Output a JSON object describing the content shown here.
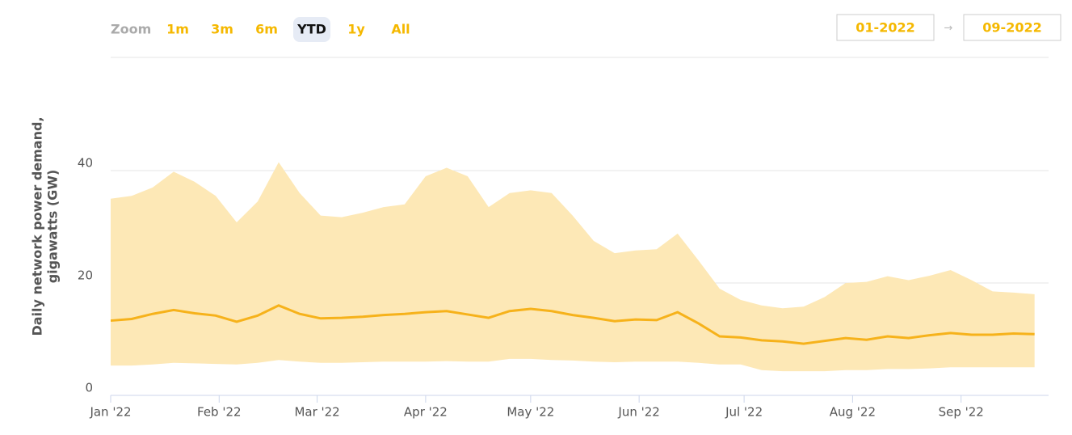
{
  "controls": {
    "zoom_label": "Zoom",
    "zoom_buttons": [
      "1m",
      "3m",
      "6m",
      "YTD",
      "1y",
      "All"
    ],
    "selected_index": 3,
    "range_from": "01-2022",
    "range_separator": "→",
    "range_to": "09-2022"
  },
  "chart_data": {
    "type": "line",
    "ylabel": [
      "Daily network power demand,",
      "gigawatts (GW)"
    ],
    "x": [
      0,
      6,
      12,
      18,
      24,
      30,
      36,
      42,
      48,
      54,
      60,
      66,
      72,
      78,
      84,
      90,
      96,
      102,
      108,
      114,
      120,
      126,
      132,
      138,
      144,
      150,
      156,
      162,
      168,
      174,
      180,
      186,
      192,
      198,
      204,
      210,
      216,
      222,
      228,
      234,
      240,
      246,
      252,
      258,
      264
    ],
    "xlim": [
      0,
      268
    ],
    "xticks": [
      {
        "value": 0,
        "label": "Jan '22"
      },
      {
        "value": 31,
        "label": "Feb '22"
      },
      {
        "value": 59,
        "label": "Mar '22"
      },
      {
        "value": 90,
        "label": "Apr '22"
      },
      {
        "value": 120,
        "label": "May '22"
      },
      {
        "value": 151,
        "label": "Jun '22"
      },
      {
        "value": 181,
        "label": "Jul '22"
      },
      {
        "value": 212,
        "label": "Aug '22"
      },
      {
        "value": 243,
        "label": "Sep '22"
      }
    ],
    "ylim": [
      0,
      60
    ],
    "yticks": [
      0,
      20,
      40
    ],
    "grid": true,
    "series": [
      {
        "type": "arearange",
        "color": "#fde8b6",
        "high": [
          35,
          35.5,
          37,
          39.8,
          38,
          35.5,
          30.8,
          34.5,
          41.5,
          36,
          32,
          31.7,
          32.5,
          33.5,
          34,
          39,
          40.5,
          39,
          33.5,
          36,
          36.5,
          36,
          32,
          27.5,
          25.3,
          25.8,
          26,
          28.8,
          24,
          19,
          17,
          16,
          15.5,
          15.8,
          17.5,
          20,
          20.2,
          21.2,
          20.5,
          21.3,
          22.3,
          20.5,
          18.5,
          18.3,
          18
        ],
        "low": [
          5.3,
          5.3,
          5.5,
          5.8,
          5.7,
          5.6,
          5.5,
          5.8,
          6.3,
          6,
          5.8,
          5.8,
          5.9,
          6,
          6,
          6,
          6.1,
          6,
          6,
          6.5,
          6.5,
          6.3,
          6.2,
          6,
          5.9,
          6,
          6,
          6,
          5.8,
          5.5,
          5.5,
          4.5,
          4.3,
          4.3,
          4.3,
          4.5,
          4.5,
          4.7,
          4.7,
          4.8,
          5,
          5,
          5,
          5,
          5
        ]
      },
      {
        "type": "line",
        "color": "#f6b21b",
        "values": [
          13.3,
          13.6,
          14.5,
          15.2,
          14.6,
          14.2,
          13.1,
          14.2,
          16,
          14.5,
          13.7,
          13.8,
          14,
          14.3,
          14.5,
          14.8,
          15,
          14.4,
          13.8,
          15,
          15.4,
          15,
          14.3,
          13.8,
          13.2,
          13.5,
          13.4,
          14.8,
          12.8,
          10.5,
          10.3,
          9.8,
          9.6,
          9.2,
          9.7,
          10.2,
          9.9,
          10.5,
          10.2,
          10.7,
          11.1,
          10.8,
          10.8,
          11,
          10.9
        ]
      }
    ]
  }
}
